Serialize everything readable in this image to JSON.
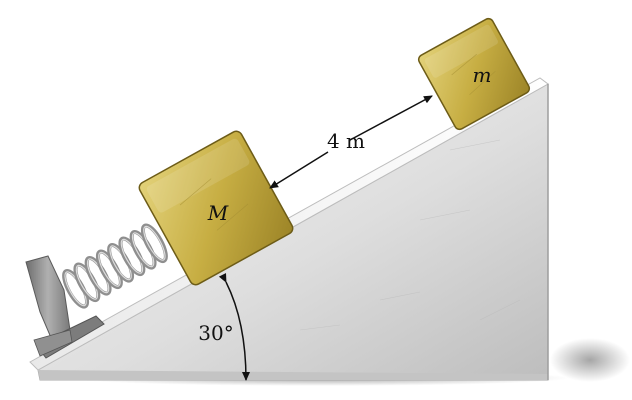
{
  "diagram": {
    "block_large_label": "M",
    "block_small_label": "m",
    "distance_label": "4 m",
    "angle_label": "30°"
  },
  "colors": {
    "incline_top": "#f3f3f3",
    "incline_face": "#cfcfcf",
    "block_gold": "#c9b24a",
    "block_gold_dark": "#8f7a22",
    "spring": "#9a9a9a",
    "stand": "#8a8a8a"
  }
}
